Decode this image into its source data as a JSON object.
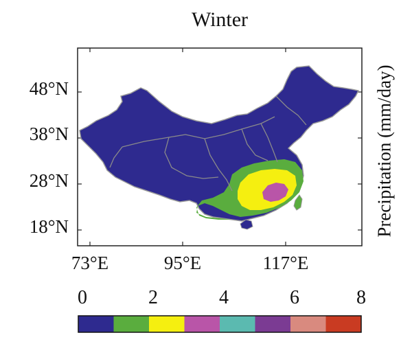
{
  "title": "Winter",
  "colorbar_label": "Precipitation (mm/day)",
  "lat_ticks": [
    "48°N",
    "38°N",
    "28°N",
    "18°N"
  ],
  "lon_ticks": [
    "73°E",
    "95°E",
    "117°E"
  ],
  "colorbar": {
    "ticks": [
      "0",
      "2",
      "4",
      "6",
      "8"
    ],
    "bins": [
      {
        "range": [
          0,
          1
        ],
        "color": "#2e2a8f"
      },
      {
        "range": [
          1,
          2
        ],
        "color": "#5aad3e"
      },
      {
        "range": [
          2,
          3
        ],
        "color": "#f5ef10"
      },
      {
        "range": [
          3,
          4
        ],
        "color": "#b955a8"
      },
      {
        "range": [
          4,
          5
        ],
        "color": "#5bbab0"
      },
      {
        "range": [
          5,
          6
        ],
        "color": "#7b3b93"
      },
      {
        "range": [
          6,
          7
        ],
        "color": "#d98a7f"
      },
      {
        "range": [
          7,
          8
        ],
        "color": "#c93b22"
      }
    ]
  },
  "colors": {
    "land_background": "#2e2a8f",
    "border_lines": "#8a8a8a"
  }
}
